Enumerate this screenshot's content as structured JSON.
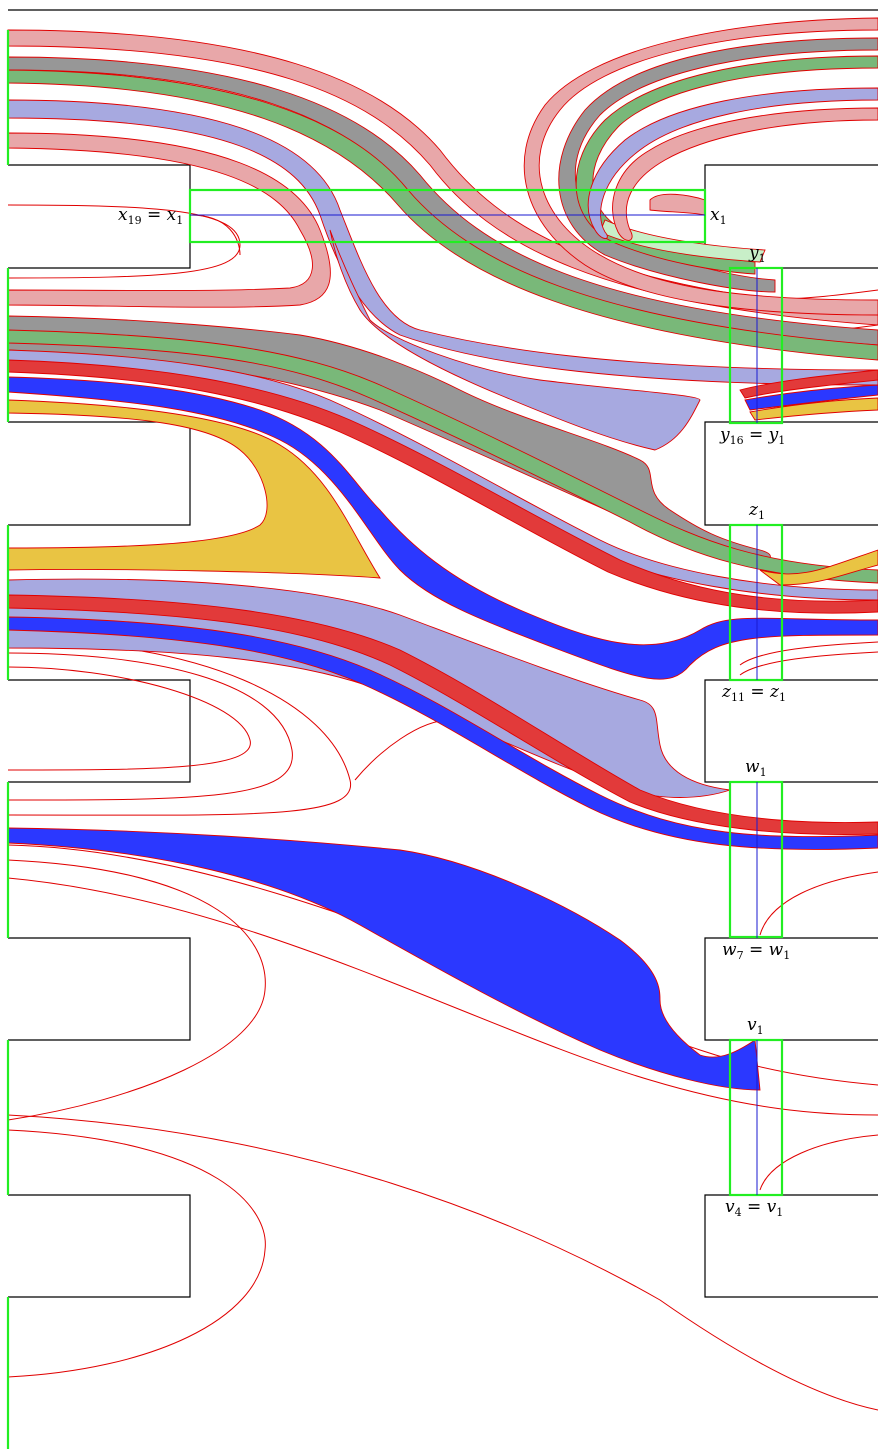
{
  "colors": {
    "pink": "#e8a7a9",
    "gray": "#979797",
    "green": "#79b879",
    "lavender": "#a7a9e0",
    "red": "#e23a3a",
    "blue": "#2b38ff",
    "yellow": "#e9c443",
    "lightgreen": "#c8efc8",
    "curve": "#e00000",
    "box": "#22ee22"
  },
  "labels": {
    "x_left": {
      "base": "x",
      "sub": "19",
      "eq": " = ",
      "base2": "x",
      "sub2": "1"
    },
    "x_right": {
      "base": "x",
      "sub": "1"
    },
    "y_top": {
      "base": "y",
      "sub": "1"
    },
    "y_bottom": {
      "base": "y",
      "sub": "16",
      "eq": " = ",
      "base2": "y",
      "sub2": "1"
    },
    "z_top": {
      "base": "z",
      "sub": "1"
    },
    "z_bottom": {
      "base": "z",
      "sub": "11",
      "eq": " = ",
      "base2": "z",
      "sub2": "1"
    },
    "w_top": {
      "base": "w",
      "sub": "1"
    },
    "w_bottom": {
      "base": "w",
      "sub": "7",
      "eq": " = ",
      "base2": "w",
      "sub2": "1"
    },
    "v_top": {
      "base": "v",
      "sub": "1"
    },
    "v_bottom": {
      "base": "v",
      "sub": "4",
      "eq": " = ",
      "base2": "v",
      "sub2": "1"
    }
  }
}
